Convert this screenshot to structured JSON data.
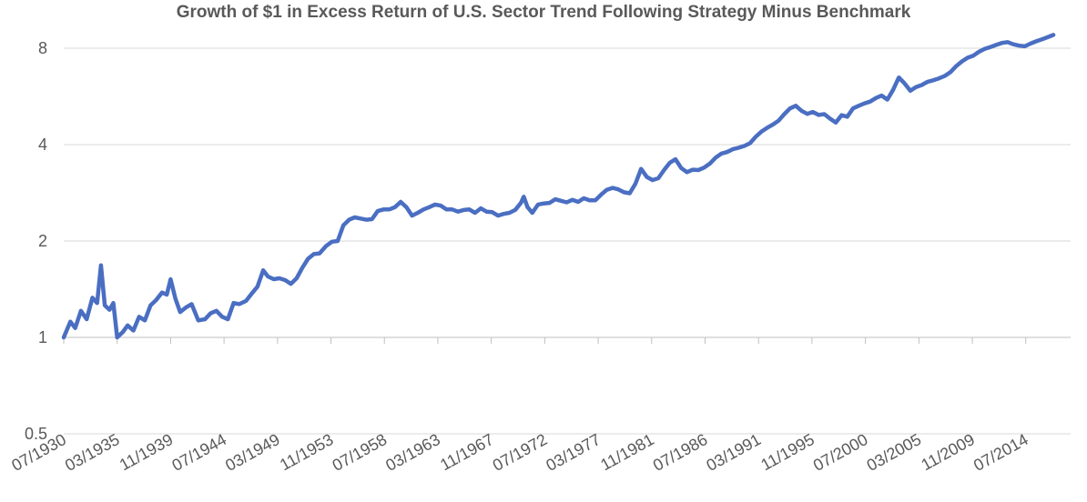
{
  "chart_data": {
    "type": "line",
    "title": "Growth of $1 in Excess Return of U.S. Sector Trend Following Strategy Minus Benchmark",
    "xlabel": "",
    "ylabel": "",
    "y_scale": "log2",
    "ylim": [
      0.5,
      8.7
    ],
    "y_ticks": [
      {
        "value": 8,
        "label": "8"
      },
      {
        "value": 4,
        "label": "4"
      },
      {
        "value": 2,
        "label": "2"
      },
      {
        "value": 1,
        "label": "1"
      },
      {
        "value": 0.5,
        "label": "0.5"
      }
    ],
    "x_range": [
      "07/1930",
      "06/2018"
    ],
    "x_tick_labels": [
      "07/1930",
      "03/1935",
      "11/1939",
      "07/1944",
      "03/1949",
      "11/1953",
      "07/1958",
      "03/1963",
      "11/1967",
      "07/1972",
      "03/1977",
      "11/1981",
      "07/1986",
      "03/1991",
      "11/1995",
      "07/2000",
      "03/2005",
      "11/2009",
      "07/2014"
    ],
    "grid": {
      "horizontal": true,
      "vertical": false
    },
    "legend": "none",
    "series": [
      {
        "color": "#4A6EC2",
        "points": [
          [
            "07/1930",
            1.0
          ],
          [
            "02/1931",
            1.12
          ],
          [
            "07/1931",
            1.07
          ],
          [
            "01/1932",
            1.21
          ],
          [
            "07/1932",
            1.14
          ],
          [
            "01/1933",
            1.33
          ],
          [
            "06/1933",
            1.28
          ],
          [
            "10/1933",
            1.68
          ],
          [
            "02/1934",
            1.26
          ],
          [
            "07/1934",
            1.22
          ],
          [
            "11/1934",
            1.28
          ],
          [
            "03/1935",
            1.0
          ],
          [
            "09/1935",
            1.04
          ],
          [
            "02/1936",
            1.09
          ],
          [
            "08/1936",
            1.05
          ],
          [
            "02/1937",
            1.16
          ],
          [
            "08/1937",
            1.13
          ],
          [
            "02/1938",
            1.26
          ],
          [
            "08/1938",
            1.31
          ],
          [
            "02/1939",
            1.38
          ],
          [
            "07/1939",
            1.36
          ],
          [
            "11/1939",
            1.52
          ],
          [
            "04/1940",
            1.32
          ],
          [
            "09/1940",
            1.2
          ],
          [
            "03/1941",
            1.24
          ],
          [
            "09/1941",
            1.27
          ],
          [
            "04/1942",
            1.13
          ],
          [
            "11/1942",
            1.14
          ],
          [
            "05/1943",
            1.19
          ],
          [
            "11/1943",
            1.21
          ],
          [
            "05/1944",
            1.16
          ],
          [
            "11/1944",
            1.14
          ],
          [
            "05/1945",
            1.28
          ],
          [
            "11/1945",
            1.27
          ],
          [
            "06/1946",
            1.3
          ],
          [
            "12/1946",
            1.37
          ],
          [
            "06/1947",
            1.44
          ],
          [
            "12/1947",
            1.62
          ],
          [
            "05/1948",
            1.55
          ],
          [
            "11/1948",
            1.52
          ],
          [
            "05/1949",
            1.53
          ],
          [
            "11/1949",
            1.51
          ],
          [
            "05/1950",
            1.47
          ],
          [
            "11/1950",
            1.53
          ],
          [
            "05/1951",
            1.65
          ],
          [
            "11/1951",
            1.76
          ],
          [
            "05/1952",
            1.82
          ],
          [
            "11/1952",
            1.83
          ],
          [
            "06/1953",
            1.93
          ],
          [
            "12/1953",
            1.99
          ],
          [
            "06/1954",
            2.0
          ],
          [
            "12/1954",
            2.24
          ],
          [
            "06/1955",
            2.33
          ],
          [
            "12/1955",
            2.37
          ],
          [
            "06/1956",
            2.35
          ],
          [
            "12/1956",
            2.33
          ],
          [
            "06/1957",
            2.34
          ],
          [
            "12/1957",
            2.48
          ],
          [
            "06/1958",
            2.51
          ],
          [
            "12/1958",
            2.51
          ],
          [
            "06/1959",
            2.55
          ],
          [
            "12/1959",
            2.65
          ],
          [
            "06/1960",
            2.55
          ],
          [
            "12/1960",
            2.4
          ],
          [
            "06/1961",
            2.45
          ],
          [
            "12/1961",
            2.51
          ],
          [
            "06/1962",
            2.55
          ],
          [
            "12/1962",
            2.6
          ],
          [
            "06/1963",
            2.58
          ],
          [
            "12/1963",
            2.51
          ],
          [
            "06/1964",
            2.51
          ],
          [
            "12/1964",
            2.47
          ],
          [
            "06/1965",
            2.5
          ],
          [
            "12/1965",
            2.51
          ],
          [
            "06/1966",
            2.45
          ],
          [
            "12/1966",
            2.53
          ],
          [
            "06/1967",
            2.47
          ],
          [
            "12/1967",
            2.46
          ],
          [
            "06/1968",
            2.4
          ],
          [
            "12/1968",
            2.43
          ],
          [
            "06/1969",
            2.45
          ],
          [
            "12/1969",
            2.5
          ],
          [
            "06/1970",
            2.63
          ],
          [
            "09/1970",
            2.75
          ],
          [
            "01/1971",
            2.55
          ],
          [
            "06/1971",
            2.45
          ],
          [
            "12/1971",
            2.6
          ],
          [
            "06/1972",
            2.62
          ],
          [
            "12/1972",
            2.63
          ],
          [
            "06/1973",
            2.7
          ],
          [
            "12/1973",
            2.67
          ],
          [
            "06/1974",
            2.64
          ],
          [
            "12/1974",
            2.69
          ],
          [
            "06/1975",
            2.65
          ],
          [
            "12/1975",
            2.72
          ],
          [
            "06/1976",
            2.68
          ],
          [
            "12/1976",
            2.68
          ],
          [
            "06/1977",
            2.79
          ],
          [
            "12/1977",
            2.89
          ],
          [
            "06/1978",
            2.93
          ],
          [
            "12/1978",
            2.9
          ],
          [
            "06/1979",
            2.84
          ],
          [
            "12/1979",
            2.82
          ],
          [
            "06/1980",
            3.02
          ],
          [
            "12/1980",
            3.36
          ],
          [
            "06/1981",
            3.17
          ],
          [
            "12/1981",
            3.1
          ],
          [
            "06/1982",
            3.14
          ],
          [
            "12/1982",
            3.33
          ],
          [
            "06/1983",
            3.51
          ],
          [
            "12/1983",
            3.6
          ],
          [
            "06/1984",
            3.38
          ],
          [
            "12/1984",
            3.28
          ],
          [
            "06/1985",
            3.34
          ],
          [
            "12/1985",
            3.33
          ],
          [
            "06/1986",
            3.39
          ],
          [
            "12/1986",
            3.49
          ],
          [
            "06/1987",
            3.64
          ],
          [
            "12/1987",
            3.75
          ],
          [
            "06/1988",
            3.79
          ],
          [
            "12/1988",
            3.87
          ],
          [
            "06/1989",
            3.91
          ],
          [
            "12/1989",
            3.96
          ],
          [
            "06/1990",
            4.04
          ],
          [
            "12/1990",
            4.23
          ],
          [
            "06/1991",
            4.39
          ],
          [
            "12/1991",
            4.51
          ],
          [
            "06/1992",
            4.62
          ],
          [
            "12/1992",
            4.75
          ],
          [
            "06/1993",
            4.98
          ],
          [
            "12/1993",
            5.19
          ],
          [
            "06/1994",
            5.29
          ],
          [
            "12/1994",
            5.1
          ],
          [
            "06/1995",
            4.99
          ],
          [
            "12/1995",
            5.06
          ],
          [
            "06/1996",
            4.95
          ],
          [
            "12/1996",
            4.98
          ],
          [
            "06/1997",
            4.82
          ],
          [
            "12/1997",
            4.69
          ],
          [
            "06/1998",
            4.94
          ],
          [
            "12/1998",
            4.89
          ],
          [
            "06/1999",
            5.19
          ],
          [
            "12/1999",
            5.29
          ],
          [
            "06/2000",
            5.38
          ],
          [
            "12/2000",
            5.45
          ],
          [
            "06/2001",
            5.59
          ],
          [
            "12/2001",
            5.69
          ],
          [
            "06/2002",
            5.53
          ],
          [
            "12/2002",
            5.93
          ],
          [
            "06/2003",
            6.48
          ],
          [
            "12/2003",
            6.21
          ],
          [
            "06/2004",
            5.89
          ],
          [
            "12/2004",
            6.05
          ],
          [
            "06/2005",
            6.14
          ],
          [
            "12/2005",
            6.28
          ],
          [
            "06/2006",
            6.35
          ],
          [
            "12/2006",
            6.44
          ],
          [
            "06/2007",
            6.55
          ],
          [
            "12/2007",
            6.73
          ],
          [
            "06/2008",
            7.03
          ],
          [
            "12/2008",
            7.27
          ],
          [
            "06/2009",
            7.47
          ],
          [
            "12/2009",
            7.58
          ],
          [
            "06/2010",
            7.8
          ],
          [
            "12/2010",
            7.96
          ],
          [
            "06/2011",
            8.07
          ],
          [
            "12/2011",
            8.19
          ],
          [
            "06/2012",
            8.31
          ],
          [
            "12/2012",
            8.36
          ],
          [
            "06/2013",
            8.23
          ],
          [
            "12/2013",
            8.15
          ],
          [
            "06/2014",
            8.11
          ],
          [
            "12/2014",
            8.27
          ],
          [
            "06/2015",
            8.41
          ],
          [
            "12/2015",
            8.53
          ],
          [
            "06/2016",
            8.66
          ],
          [
            "12/2016",
            8.8
          ]
        ]
      }
    ]
  }
}
